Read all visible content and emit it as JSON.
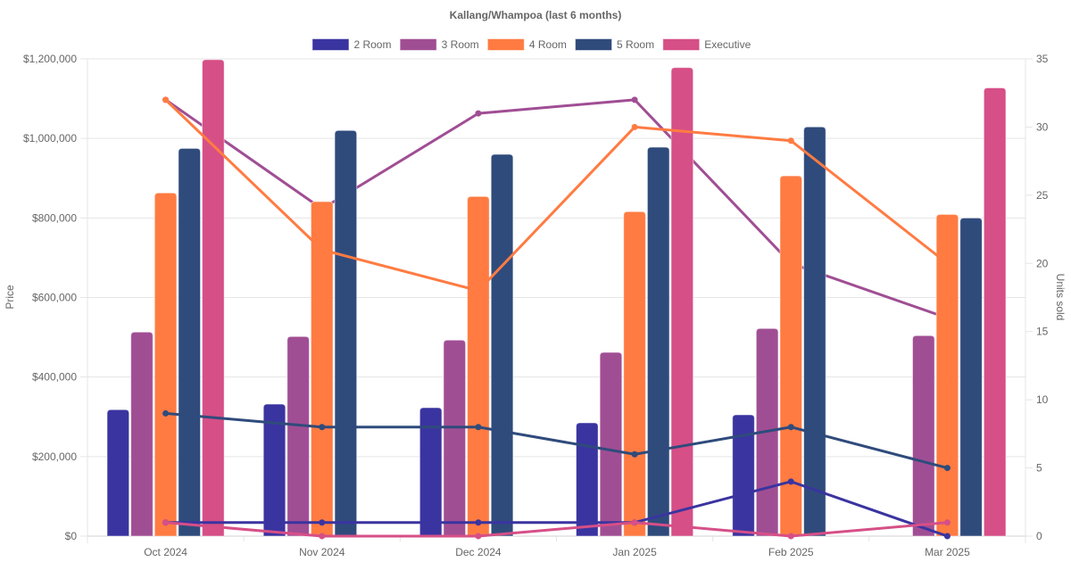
{
  "chart_data": {
    "type": "bar",
    "title": "Kallang/Whampoa (last 6 months)",
    "categories": [
      "Oct 2024",
      "Nov 2024",
      "Dec 2024",
      "Jan 2025",
      "Feb 2025",
      "Mar 2025"
    ],
    "y_left": {
      "label": "Price",
      "range": [
        0,
        1200000
      ],
      "ticks": [
        0,
        200000,
        400000,
        600000,
        800000,
        1000000,
        1200000
      ],
      "tick_labels": [
        "$0",
        "$200,000",
        "$400,000",
        "$600,000",
        "$800,000",
        "$1,000,000",
        "$1,200,000"
      ]
    },
    "y_right": {
      "label": "Units sold",
      "range": [
        0,
        35
      ],
      "ticks": [
        0,
        5,
        10,
        15,
        20,
        25,
        30,
        35
      ],
      "tick_labels": [
        "0",
        "5",
        "10",
        "15",
        "20",
        "25",
        "30",
        "35"
      ]
    },
    "grid": true,
    "legend_position": "top",
    "legend": [
      "2 Room",
      "3 Room",
      "4 Room",
      "5 Room",
      "Executive"
    ],
    "bar_series": [
      {
        "name": "2 Room",
        "color": "#3a34a0",
        "axis": "left",
        "values": [
          318000,
          332000,
          323000,
          285000,
          305000,
          null
        ]
      },
      {
        "name": "3 Room",
        "color": "#a04e94",
        "axis": "left",
        "values": [
          513000,
          502000,
          493000,
          462000,
          522000,
          504000
        ]
      },
      {
        "name": "4 Room",
        "color": "#ff7b42",
        "axis": "left",
        "values": [
          863000,
          841000,
          854000,
          816000,
          906000,
          809000
        ]
      },
      {
        "name": "5 Room",
        "color": "#2f4b7c",
        "axis": "left",
        "values": [
          975000,
          1020000,
          960000,
          978000,
          1029000,
          800000
        ]
      },
      {
        "name": "Executive",
        "color": "#d64f87",
        "axis": "left",
        "values": [
          1198000,
          null,
          null,
          1178000,
          null,
          1127000
        ]
      }
    ],
    "line_series": [
      {
        "name": "2 Room",
        "color": "#3a34a0",
        "axis": "right",
        "values": [
          1,
          1,
          1,
          1,
          4,
          0
        ]
      },
      {
        "name": "3 Room",
        "color": "#a04e94",
        "axis": "right",
        "values": [
          32,
          24,
          31,
          32,
          20,
          16
        ]
      },
      {
        "name": "4 Room",
        "color": "#ff7b42",
        "axis": "right",
        "values": [
          32,
          21,
          18,
          30,
          29,
          20
        ]
      },
      {
        "name": "5 Room",
        "color": "#2f4b7c",
        "axis": "right",
        "values": [
          9,
          8,
          8,
          6,
          8,
          5
        ]
      },
      {
        "name": "Executive",
        "color": "#d64f87",
        "axis": "right",
        "values": [
          1,
          0,
          0,
          1,
          0,
          1
        ]
      }
    ]
  }
}
